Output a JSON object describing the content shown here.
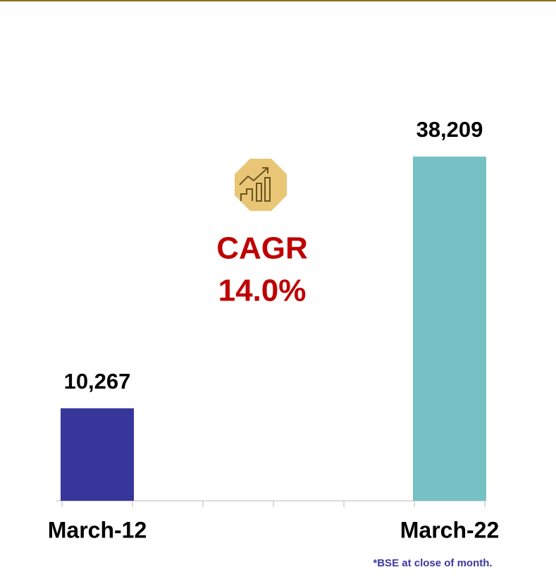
{
  "chart_data": {
    "type": "bar",
    "categories": [
      "March-12",
      null,
      null,
      null,
      null,
      "March-22"
    ],
    "series": [
      {
        "name": null,
        "values": [
          10267,
          null,
          null,
          null,
          null,
          38209
        ],
        "value_labels": [
          "10,267",
          null,
          null,
          null,
          null,
          "38,209"
        ],
        "colors": [
          "#36369c",
          null,
          null,
          null,
          null,
          "#76c1c5"
        ]
      }
    ],
    "annotations": [
      "CAGR",
      "14.0%"
    ],
    "footnote": "*BSE at close of month."
  }
}
